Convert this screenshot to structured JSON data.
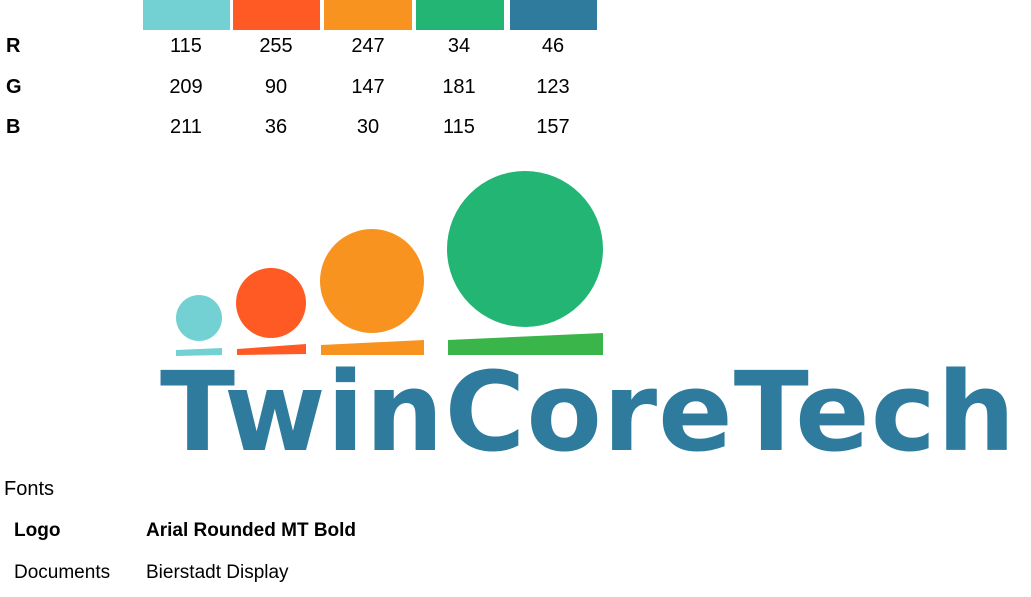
{
  "palette": {
    "colors": [
      {
        "hex": "#73d1d3",
        "r": "115",
        "g": "209",
        "b": "211"
      },
      {
        "hex": "#ff5a24",
        "r": "255",
        "g": "90",
        "b": "36"
      },
      {
        "hex": "#f7931e",
        "r": "247",
        "g": "147",
        "b": "30"
      },
      {
        "hex": "#22b573",
        "r": "34",
        "g": "181",
        "b": "115"
      },
      {
        "hex": "#2e7b9d",
        "r": "46",
        "g": "123",
        "b": "157"
      }
    ],
    "row_labels": {
      "r": "R",
      "g": "G",
      "b": "B"
    }
  },
  "logo": {
    "wordmark": "TwinCoreTech",
    "text_color": "#2e7b9d",
    "bar_color": "#39b54a"
  },
  "fonts": {
    "heading": "Fonts",
    "logo_label": "Logo",
    "logo_font": "Arial Rounded MT Bold",
    "documents_label": "Documents",
    "documents_font": "Bierstadt Display"
  }
}
